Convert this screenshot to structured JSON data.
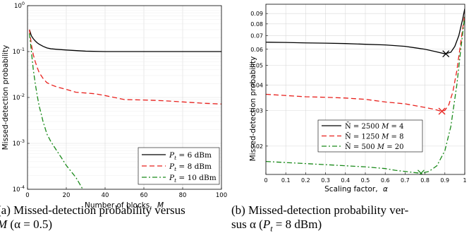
{
  "chart_data": [
    {
      "type": "line",
      "ylog": true,
      "xlabel": "Number of blocks,",
      "xlabel_symbol": "M",
      "ylabel": "Missed-detection probability",
      "xlim": [
        0,
        100
      ],
      "ylim": [
        0.0001,
        1
      ],
      "xticks": [
        "0",
        "20",
        "40",
        "60",
        "80",
        "100"
      ],
      "yticks": [
        {
          "base": "10",
          "exp": "0"
        },
        {
          "base": "10",
          "exp": "-1"
        },
        {
          "base": "10",
          "exp": "-2"
        },
        {
          "base": "10",
          "exp": "-3"
        },
        {
          "base": "10",
          "exp": "-4"
        }
      ],
      "grid": true,
      "legend_position": "bottom-right",
      "series": [
        {
          "name": "P_t = 6 dBm",
          "label_sym": "P",
          "label_sub": "t",
          "label_rest": " = 6 dBm",
          "color": "#000000",
          "dash": "solid",
          "x": [
            1,
            2,
            3,
            4,
            5,
            6,
            8,
            10,
            12,
            15,
            20,
            30,
            40,
            50,
            60,
            70,
            80,
            90,
            100
          ],
          "y": [
            0.3,
            0.22,
            0.19,
            0.17,
            0.155,
            0.145,
            0.13,
            0.12,
            0.115,
            0.112,
            0.108,
            0.102,
            0.1,
            0.1,
            0.1,
            0.1,
            0.1,
            0.1,
            0.1
          ]
        },
        {
          "name": "P_t = 8 dBm",
          "label_sym": "P",
          "label_sub": "t",
          "label_rest": " = 8 dBm",
          "color": "#e8201c",
          "dash": "dashed",
          "x": [
            1,
            2,
            3,
            4,
            5,
            6,
            8,
            10,
            12,
            15,
            20,
            25,
            30,
            35,
            40,
            50,
            60,
            70,
            80,
            90,
            100
          ],
          "y": [
            0.3,
            0.14,
            0.085,
            0.06,
            0.045,
            0.035,
            0.026,
            0.021,
            0.019,
            0.017,
            0.015,
            0.013,
            0.0125,
            0.012,
            0.011,
            0.009,
            0.0088,
            0.0085,
            0.008,
            0.0075,
            0.0072
          ]
        },
        {
          "name": "P_t = 10 dBm",
          "label_sym": "P",
          "label_sub": "t",
          "label_rest": " = 10 dBm",
          "color": "#1a8a1a",
          "dash": "dashdot",
          "x": [
            1,
            2,
            3,
            4,
            5,
            6,
            7,
            8,
            9,
            10,
            12,
            15,
            18,
            20,
            25,
            28.5
          ],
          "y": [
            0.25,
            0.1,
            0.04,
            0.02,
            0.011,
            0.0065,
            0.0045,
            0.003,
            0.0022,
            0.0016,
            0.0011,
            0.0007,
            0.00045,
            0.00033,
            0.00018,
            0.0001
          ]
        }
      ]
    },
    {
      "type": "line",
      "ylog": true,
      "xlabel": "Scaling factor,",
      "xlabel_symbol": "α",
      "ylabel": "Missed-detection probability",
      "xlim": [
        0,
        1
      ],
      "ylim": [
        0.0145,
        0.1
      ],
      "xticks": [
        "0",
        "0.1",
        "0.2",
        "0.3",
        "0.4",
        "0.5",
        "0.6",
        "0.7",
        "0.8",
        "0.9",
        "1"
      ],
      "yticks": [
        "0.02",
        "0.03",
        "0.04",
        "0.05",
        "0.06",
        "0.07",
        "0.08",
        "0.09"
      ],
      "grid": true,
      "legend_position": "bottom-left",
      "series": [
        {
          "name": "N̄ = 2500 M = 4",
          "label_a": "N̄ = 2500 ",
          "label_b": "M",
          "label_c": " = 4",
          "color": "#000000",
          "dash": "solid",
          "x": [
            0,
            0.1,
            0.2,
            0.3,
            0.4,
            0.5,
            0.6,
            0.7,
            0.75,
            0.8,
            0.85,
            0.9,
            0.93,
            0.95,
            0.97,
            0.99,
            1.0
          ],
          "y": [
            0.065,
            0.0648,
            0.0645,
            0.0643,
            0.064,
            0.0635,
            0.063,
            0.062,
            0.061,
            0.06,
            0.0585,
            0.057,
            0.058,
            0.062,
            0.07,
            0.085,
            0.095
          ],
          "marker": {
            "x": 0.905,
            "y": 0.057
          }
        },
        {
          "name": "N̄ = 1250 M = 8",
          "label_a": "N̄ = 1250 ",
          "label_b": "M",
          "label_c": " = 8",
          "color": "#e8201c",
          "dash": "dashed",
          "x": [
            0,
            0.1,
            0.2,
            0.3,
            0.4,
            0.5,
            0.6,
            0.7,
            0.8,
            0.85,
            0.88,
            0.9,
            0.92,
            0.94,
            0.96,
            0.98,
            1.0
          ],
          "y": [
            0.036,
            0.0355,
            0.035,
            0.0348,
            0.0345,
            0.034,
            0.033,
            0.0323,
            0.031,
            0.0303,
            0.0297,
            0.03,
            0.032,
            0.037,
            0.047,
            0.065,
            0.09
          ],
          "marker": {
            "x": 0.885,
            "y": 0.0297
          }
        },
        {
          "name": "N̄ = 500 M = 20",
          "label_a": "N̄ = 500 ",
          "label_b": "M",
          "label_c": " = 20",
          "color": "#1a8a1a",
          "dash": "dashdot",
          "x": [
            0,
            0.1,
            0.2,
            0.3,
            0.4,
            0.5,
            0.6,
            0.65,
            0.7,
            0.75,
            0.78,
            0.82,
            0.86,
            0.9,
            0.93,
            0.96,
            0.98,
            1.0
          ],
          "y": [
            0.0168,
            0.0166,
            0.0164,
            0.0162,
            0.016,
            0.0158,
            0.0155,
            0.0152,
            0.015,
            0.0148,
            0.0147,
            0.015,
            0.016,
            0.019,
            0.025,
            0.04,
            0.06,
            0.088
          ],
          "marker": {
            "x": 0.78,
            "y": 0.0147
          }
        }
      ]
    }
  ],
  "captions": {
    "a": {
      "line1": "(a) Missed-detection probability versus",
      "line2_sym": "M",
      "line2_rest": " (α = 0.5)"
    },
    "b": {
      "line1": "(b) Missed-detection probability ver-",
      "line2_rest": "sus α (",
      "line2_sym": "P",
      "line2_sub": "t",
      "line2_end": " = 8 dBm)"
    }
  }
}
